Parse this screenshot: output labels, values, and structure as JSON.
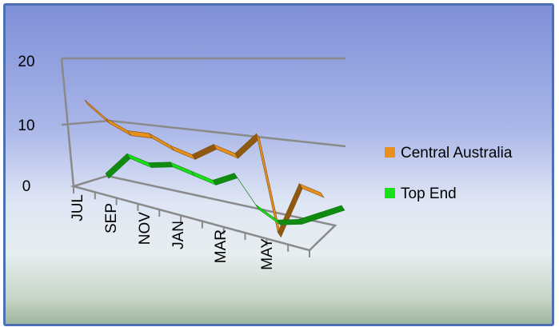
{
  "chart_data": {
    "type": "line",
    "style": "3d-ribbon",
    "title": "",
    "xlabel": "",
    "ylabel": "",
    "ylim": [
      0,
      20
    ],
    "y_ticks": [
      "0",
      "10",
      "20"
    ],
    "x_ticks": [
      "JUL",
      "SEP",
      "NOV",
      "JAN",
      "MAR",
      "MAY"
    ],
    "grid": true,
    "legend_position": "right",
    "series": [
      {
        "name": "Central Australia",
        "color": "#e8901c",
        "values": [
          14,
          12,
          11,
          11.5,
          10.5,
          10,
          12.5,
          12,
          16,
          1.5,
          10,
          9.5
        ]
      },
      {
        "name": "Top End",
        "color": "#19e019",
        "values": [
          3.5,
          7.5,
          7,
          8,
          7.5,
          7,
          9,
          5,
          3.5,
          4.5,
          6.5,
          8.5
        ]
      }
    ]
  }
}
